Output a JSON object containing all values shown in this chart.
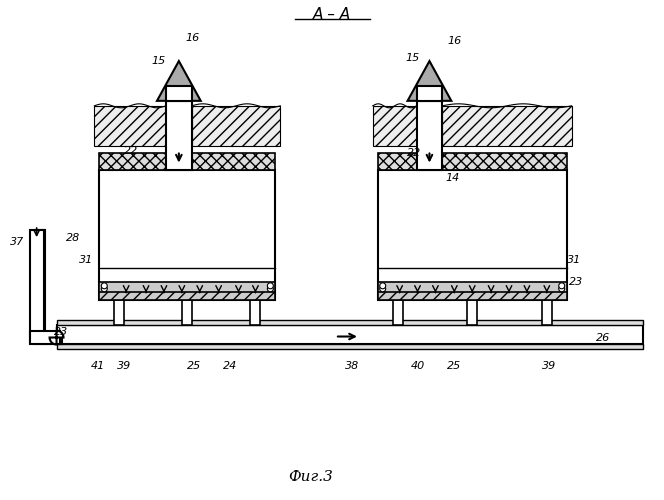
{
  "title": "А – А",
  "caption": "Фиг.3",
  "bg_color": "#ffffff",
  "line_color": "#000000",
  "fig_width": 6.64,
  "fig_height": 5.0
}
